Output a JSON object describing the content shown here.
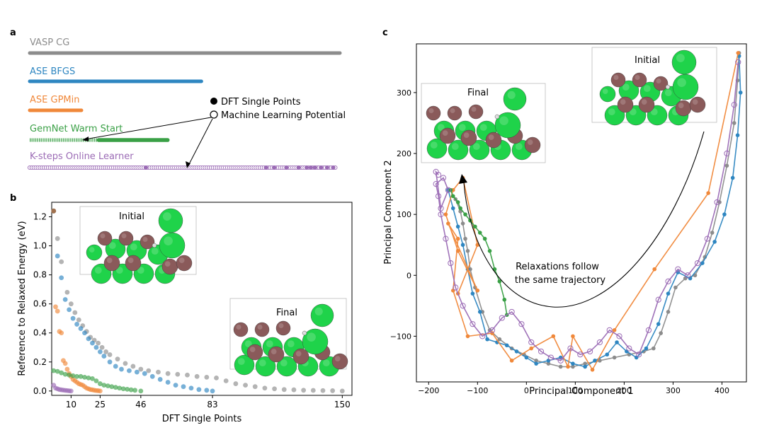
{
  "panels": {
    "a": "a",
    "b": "b",
    "c": "c"
  },
  "panel_a": {
    "methods": [
      {
        "label": "VASP CG",
        "color": "#8c8c8c",
        "dft_points": 150
      },
      {
        "label": "ASE BFGS",
        "color": "#2e86c1",
        "dft_points": 83
      },
      {
        "label": "ASE GPMin",
        "color": "#f0883a",
        "dft_points": 25
      },
      {
        "label": "GemNet Warm Start",
        "color": "#3aa046",
        "dft_points": 46
      },
      {
        "label": "K-steps Online Learner",
        "color": "#9b6bb5",
        "dft_points": 10
      }
    ],
    "legend": {
      "dft": "DFT Single Points",
      "ml": "Machine Learning Potential"
    }
  },
  "panel_b": {
    "xlabel": "DFT Single Points",
    "ylabel": "Reference to Relaxed Energy (eV)",
    "xticks": [
      "10",
      "25",
      "46",
      "83",
      "150"
    ],
    "yticks": [
      "0.0",
      "0.2",
      "0.4",
      "0.6",
      "0.8",
      "1.0",
      "1.2"
    ],
    "insets": {
      "initial": "Initial",
      "final": "Final"
    }
  },
  "panel_c": {
    "xlabel": "Principal Component 1",
    "ylabel": "Principal Component 2",
    "xticks": [
      "−200",
      "−100",
      "0",
      "100",
      "200",
      "300",
      "400"
    ],
    "yticks": [
      "−100",
      "0",
      "100",
      "200",
      "300"
    ],
    "annotation_line1": "Relaxations follow",
    "annotation_line2": "the same trajectory",
    "insets": {
      "initial": "Initial",
      "final": "Final"
    }
  },
  "chart_data": [
    {
      "type": "scatter",
      "panel": "b",
      "xlabel": "DFT Single Points",
      "ylabel": "Reference to Relaxed Energy (eV)",
      "xlim": [
        0,
        155
      ],
      "ylim": [
        -0.03,
        1.3
      ],
      "series": [
        {
          "name": "VASP CG",
          "color": "#8c8c8c",
          "x": [
            1,
            3,
            5,
            8,
            10,
            12,
            14,
            16,
            18,
            20,
            22,
            24,
            26,
            28,
            30,
            34,
            38,
            42,
            46,
            50,
            55,
            60,
            65,
            70,
            75,
            80,
            85,
            90,
            95,
            100,
            105,
            110,
            115,
            120,
            125,
            130,
            135,
            140,
            145,
            150
          ],
          "y": [
            1.24,
            1.05,
            0.89,
            0.68,
            0.6,
            0.54,
            0.49,
            0.45,
            0.41,
            0.37,
            0.35,
            0.33,
            0.3,
            0.27,
            0.25,
            0.22,
            0.19,
            0.17,
            0.15,
            0.14,
            0.13,
            0.12,
            0.115,
            0.11,
            0.1,
            0.095,
            0.09,
            0.07,
            0.05,
            0.04,
            0.03,
            0.02,
            0.015,
            0.01,
            0.008,
            0.005,
            0.004,
            0.003,
            0.002,
            0.0
          ]
        },
        {
          "name": "ASE BFGS",
          "color": "#2e86c1",
          "x": [
            1,
            3,
            5,
            7,
            9,
            11,
            13,
            15,
            17,
            19,
            21,
            23,
            25,
            27,
            30,
            33,
            36,
            40,
            44,
            48,
            52,
            56,
            60,
            64,
            68,
            72,
            76,
            80,
            83
          ],
          "y": [
            1.24,
            0.93,
            0.78,
            0.63,
            0.56,
            0.5,
            0.46,
            0.43,
            0.4,
            0.36,
            0.33,
            0.3,
            0.27,
            0.24,
            0.2,
            0.17,
            0.15,
            0.14,
            0.13,
            0.12,
            0.1,
            0.08,
            0.06,
            0.04,
            0.03,
            0.02,
            0.01,
            0.005,
            0.0
          ]
        },
        {
          "name": "ASE GPMin",
          "color": "#f0883a",
          "x": [
            1,
            2,
            3,
            4,
            5,
            6,
            7,
            8,
            9,
            10,
            11,
            12,
            13,
            14,
            15,
            16,
            17,
            18,
            19,
            20,
            21,
            22,
            23,
            24,
            25
          ],
          "y": [
            1.24,
            0.58,
            0.55,
            0.41,
            0.4,
            0.21,
            0.19,
            0.15,
            0.12,
            0.1,
            0.08,
            0.07,
            0.06,
            0.05,
            0.045,
            0.04,
            0.03,
            0.02,
            0.015,
            0.01,
            0.008,
            0.005,
            0.003,
            0.002,
            0.0
          ]
        },
        {
          "name": "GemNet Warm Start",
          "color": "#3aa046",
          "x": [
            1,
            3,
            5,
            7,
            9,
            11,
            13,
            15,
            17,
            19,
            21,
            23,
            25,
            27,
            29,
            31,
            33,
            35,
            37,
            39,
            41,
            43,
            46
          ],
          "y": [
            0.14,
            0.135,
            0.125,
            0.115,
            0.11,
            0.105,
            0.1,
            0.1,
            0.095,
            0.09,
            0.085,
            0.07,
            0.05,
            0.04,
            0.035,
            0.03,
            0.025,
            0.02,
            0.015,
            0.012,
            0.008,
            0.005,
            0.0
          ]
        },
        {
          "name": "K-steps Online Learner",
          "color": "#9b6bb5",
          "x": [
            1,
            2,
            3,
            4,
            5,
            6,
            7,
            8,
            9,
            10
          ],
          "y": [
            0.04,
            0.02,
            0.015,
            0.01,
            0.008,
            0.006,
            0.004,
            0.003,
            0.001,
            0.0
          ]
        }
      ]
    },
    {
      "type": "line",
      "panel": "c",
      "xlabel": "Principal Component 1",
      "ylabel": "Principal Component 2",
      "xlim": [
        -225,
        450
      ],
      "ylim": [
        -175,
        380
      ],
      "series": [
        {
          "name": "VASP CG",
          "color": "#8c8c8c",
          "x": [
            435,
            432,
            425,
            410,
            395,
            380,
            365,
            345,
            325,
            305,
            290,
            275,
            260,
            240,
            210,
            180,
            150,
            120,
            95,
            70,
            45,
            20,
            -5,
            -30,
            -55,
            -75,
            -90,
            -105,
            -115,
            -120,
            -125,
            -130,
            -135,
            -145
          ],
          "y": [
            365,
            320,
            250,
            180,
            120,
            70,
            30,
            0,
            -5,
            -20,
            -60,
            -95,
            -120,
            -125,
            -130,
            -135,
            -140,
            -145,
            -150,
            -150,
            -145,
            -140,
            -130,
            -120,
            -105,
            -90,
            -60,
            -20,
            10,
            40,
            60,
            85,
            105,
            125
          ]
        },
        {
          "name": "ASE BFGS",
          "color": "#2e86c1",
          "x": [
            435,
            438,
            432,
            422,
            405,
            385,
            360,
            335,
            310,
            290,
            270,
            245,
            225,
            205,
            185,
            165,
            140,
            120,
            95,
            70,
            45,
            20,
            0,
            -20,
            -40,
            -60,
            -80,
            -95,
            -110,
            -120,
            -130,
            -140,
            -150,
            -160
          ],
          "y": [
            360,
            300,
            230,
            160,
            100,
            55,
            20,
            -5,
            5,
            -30,
            -80,
            -120,
            -135,
            -125,
            -110,
            -130,
            -140,
            -150,
            -145,
            -135,
            -140,
            -145,
            -135,
            -125,
            -115,
            -110,
            -105,
            -60,
            -30,
            10,
            50,
            80,
            110,
            140
          ]
        },
        {
          "name": "ASE GPMin",
          "color": "#f0883a",
          "x": [
            433,
            372,
            262,
            180,
            135,
            95,
            85,
            55,
            10,
            -30,
            -70,
            -120,
            -150,
            -140,
            -160,
            -100,
            -140,
            -165,
            -150,
            -130,
            -100,
            -140
          ],
          "y": [
            365,
            135,
            10,
            -90,
            -155,
            -100,
            -150,
            -100,
            -120,
            -140,
            -95,
            -100,
            -25,
            60,
            85,
            -25,
            40,
            100,
            140,
            160,
            50,
            -30
          ]
        },
        {
          "name": "GemNet Warm Start",
          "color": "#3aa046",
          "x": [
            -40,
            -45,
            -55,
            -65,
            -75,
            -85,
            -95,
            -105,
            -115,
            -125,
            -135,
            -140,
            -150,
            -155
          ],
          "y": [
            -65,
            -40,
            -10,
            10,
            40,
            60,
            70,
            80,
            90,
            100,
            110,
            120,
            130,
            140
          ]
        },
        {
          "name": "K-steps Online Learner",
          "color": "#9b6bb5",
          "x": [
            433,
            425,
            410,
            390,
            370,
            350,
            330,
            310,
            290,
            270,
            250,
            230,
            210,
            190,
            170,
            150,
            130,
            110,
            90,
            70,
            50,
            30,
            10,
            -10,
            -30,
            -50,
            -70,
            -90,
            -110,
            -130,
            -145,
            -155,
            -165,
            -175,
            -180,
            -185,
            -170,
            -160,
            -175,
            -185,
            -180
          ],
          "y": [
            350,
            280,
            200,
            120,
            60,
            20,
            0,
            10,
            -10,
            -40,
            -90,
            -130,
            -120,
            -100,
            -90,
            -110,
            -125,
            -130,
            -120,
            -140,
            -135,
            -125,
            -110,
            -80,
            -60,
            -70,
            -90,
            -100,
            -80,
            -50,
            -20,
            20,
            60,
            100,
            130,
            150,
            160,
            140,
            110,
            170,
            165
          ]
        }
      ]
    }
  ]
}
